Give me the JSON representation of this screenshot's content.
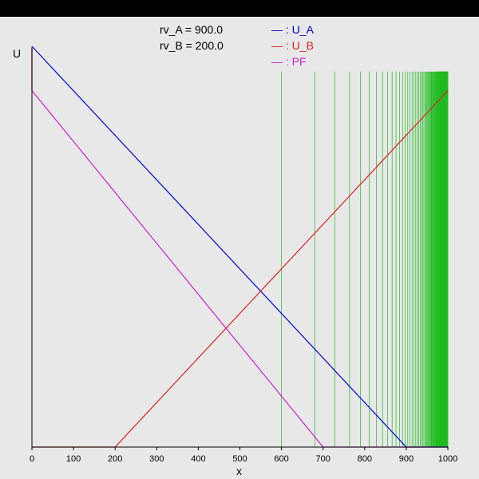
{
  "chart_data": {
    "type": "line",
    "params": [
      {
        "name": "rv_A",
        "text": "rv_A = 900.0"
      },
      {
        "name": "rv_B",
        "text": "rv_B = 200.0"
      }
    ],
    "xlabel": "x",
    "ylabel": "U",
    "xlim": [
      0,
      1000
    ],
    "ylim": [
      0,
      950
    ],
    "x_ticks": [
      0,
      100,
      200,
      300,
      400,
      500,
      600,
      700,
      800,
      900,
      1000
    ],
    "legend_position": "top-center",
    "series": [
      {
        "name": "U_A",
        "legend": "— : U_A",
        "color": "#0000dd",
        "points": [
          [
            0,
            950
          ],
          [
            900,
            0
          ],
          [
            1000,
            0
          ]
        ]
      },
      {
        "name": "U_B",
        "legend": "— : U_B",
        "color": "#dd2222",
        "points": [
          [
            0,
            0
          ],
          [
            200,
            0
          ],
          [
            1000,
            845
          ]
        ]
      },
      {
        "name": "PF",
        "legend": "— : PF",
        "color": "#cc22cc",
        "points": [
          [
            0,
            845
          ],
          [
            700,
            0
          ],
          [
            1000,
            0
          ]
        ]
      }
    ],
    "vline_color": "#22bb22",
    "vlines_top": 890,
    "vlines": [
      600.0,
      680.0,
      728.0,
      763.6,
      790.1,
      811.2,
      828.5,
      843.0,
      855.3,
      866.0,
      875.3,
      883.6,
      891.0,
      897.6,
      903.6,
      909.1,
      914.1,
      918.6,
      922.8,
      926.7,
      930.3,
      933.6,
      936.7,
      939.6,
      942.3,
      944.8,
      947.1,
      949.3,
      951.4,
      953.3,
      955.1,
      956.8,
      958.4,
      959.9,
      961.3,
      962.7,
      964.0,
      965.2,
      966.3,
      967.4,
      968.4,
      969.4,
      970.3,
      971.2,
      972.0,
      972.8,
      973.6,
      974.3,
      975.0,
      975.7,
      976.3,
      976.9,
      977.5,
      978.0,
      978.6,
      979.1,
      979.6,
      980.1,
      980.5,
      981.0,
      981.4,
      981.8,
      982.2,
      982.6,
      983.0,
      983.3,
      983.7,
      984.0,
      984.3,
      984.6,
      984.9,
      985.2,
      985.5,
      985.8,
      986.0,
      986.3,
      986.5,
      986.8,
      987.0,
      987.2,
      987.5,
      987.7,
      987.9,
      988.1,
      988.3,
      988.5,
      988.7,
      988.8,
      989.0,
      989.2,
      989.4,
      989.5,
      989.7,
      989.8,
      990.0,
      990.1,
      990.3,
      990.4,
      990.5,
      990.7,
      990.8,
      990.9,
      991.0,
      991.2,
      991.3,
      991.4,
      991.5,
      991.6,
      991.7,
      991.8,
      991.9,
      992.0,
      992.1,
      992.2,
      992.3,
      992.4,
      992.5,
      992.6,
      992.7,
      992.8,
      992.9,
      993.0,
      993.1,
      993.2,
      993.3,
      993.4,
      993.5,
      993.6,
      993.7,
      993.8,
      993.9,
      994.0,
      994.2,
      994.4,
      994.6,
      994.8,
      995.0,
      995.2,
      995.4,
      995.6,
      995.8,
      996.0,
      996.2,
      996.4,
      996.6,
      996.8,
      997.0,
      997.2,
      997.4,
      997.6,
      997.8,
      998.0,
      998.2,
      998.4,
      998.6,
      998.8,
      999.0,
      999.2,
      999.4,
      999.6,
      999.8,
      1000.0
    ]
  }
}
